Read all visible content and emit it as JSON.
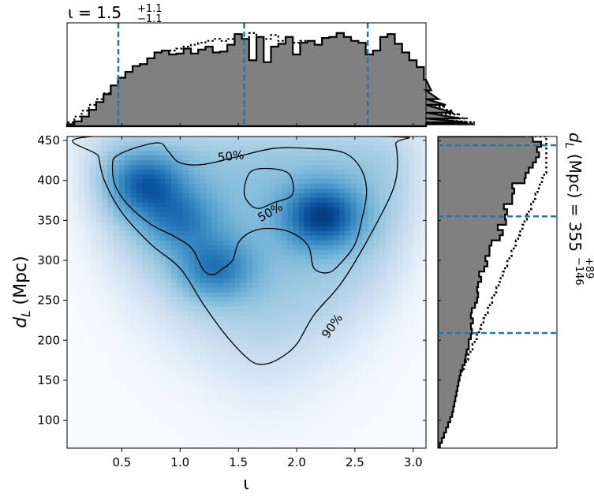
{
  "chart_data": [
    {
      "id": "joint",
      "type": "heatmap",
      "colormap": "Blues",
      "xlim": [
        0.03,
        3.11
      ],
      "ylim": [
        65,
        455
      ],
      "xticks": [
        "0.5",
        "1.0",
        "1.5",
        "2.0",
        "2.5",
        "3.0"
      ],
      "yticks": [
        "100",
        "150",
        "200",
        "250",
        "300",
        "350",
        "400",
        "450"
      ],
      "xlabel": "ι",
      "ylabel_main": "d",
      "ylabel_sub": "L",
      "ylabel_unit": "(Mpc)",
      "contour_labels": [
        "50%",
        "50%",
        "90%"
      ],
      "contours": [
        {
          "level": "90%",
          "points": [
            [
              0.25,
              455
            ],
            [
              0.3,
              430
            ],
            [
              0.35,
              400
            ],
            [
              0.5,
              360
            ],
            [
              0.75,
              320
            ],
            [
              1.0,
              290
            ],
            [
              1.2,
              245
            ],
            [
              1.4,
              205
            ],
            [
              1.6,
              175
            ],
            [
              1.72,
              170
            ],
            [
              1.85,
              177
            ],
            [
              2.0,
              195
            ],
            [
              2.15,
              232
            ],
            [
              2.4,
              275
            ],
            [
              2.7,
              350
            ],
            [
              2.85,
              400
            ],
            [
              2.85,
              445
            ],
            [
              2.75,
              455
            ]
          ]
        },
        {
          "level": "50%",
          "points": [
            [
              0.45,
              430
            ],
            [
              0.6,
              440
            ],
            [
              0.82,
              447
            ],
            [
              0.9,
              436
            ],
            [
              1.0,
              422
            ],
            [
              1.2,
              420
            ],
            [
              1.5,
              430
            ],
            [
              1.8,
              440
            ],
            [
              2.1,
              440
            ],
            [
              2.4,
              435
            ],
            [
              2.55,
              415
            ],
            [
              2.6,
              385
            ],
            [
              2.55,
              345
            ],
            [
              2.5,
              320
            ],
            [
              2.4,
              300
            ],
            [
              2.28,
              285
            ],
            [
              2.15,
              290
            ],
            [
              2.1,
              318
            ],
            [
              1.95,
              335
            ],
            [
              1.75,
              340
            ],
            [
              1.6,
              335
            ],
            [
              1.5,
              322
            ],
            [
              1.45,
              300
            ],
            [
              1.35,
              288
            ],
            [
              1.28,
              282
            ],
            [
              1.2,
              288
            ],
            [
              1.1,
              315
            ],
            [
              0.95,
              330
            ],
            [
              0.75,
              345
            ],
            [
              0.55,
              370
            ],
            [
              0.44,
              395
            ],
            [
              0.42,
              420
            ]
          ]
        },
        {
          "level": "50%",
          "points": [
            [
              1.55,
              385
            ],
            [
              1.6,
              410
            ],
            [
              1.75,
              415
            ],
            [
              1.92,
              410
            ],
            [
              1.97,
              395
            ],
            [
              1.95,
              380
            ],
            [
              1.8,
              372
            ],
            [
              1.68,
              365
            ],
            [
              1.6,
              370
            ]
          ]
        }
      ],
      "density_peaks": [
        {
          "x": 2.22,
          "y": 355,
          "w": 1.0
        },
        {
          "x": 0.7,
          "y": 395,
          "w": 0.8
        },
        {
          "x": 1.3,
          "y": 290,
          "w": 0.65
        },
        {
          "x": 1.0,
          "y": 350,
          "w": 0.55
        }
      ]
    },
    {
      "id": "marginal-iota",
      "type": "histogram",
      "title_symbol": "ι",
      "title_value": "1.5",
      "title_upper": "+1.1",
      "title_lower": "−1.1",
      "xlim": [
        0.03,
        3.11
      ],
      "ylim": [
        0,
        1.0
      ],
      "bin_width": 0.0625,
      "bin_start": 0.03,
      "values": [
        0.02,
        0.05,
        0.1,
        0.17,
        0.25,
        0.33,
        0.42,
        0.5,
        0.56,
        0.62,
        0.64,
        0.7,
        0.76,
        0.78,
        0.74,
        0.75,
        0.8,
        0.75,
        0.79,
        0.82,
        0.76,
        0.77,
        0.84,
        0.95,
        0.9,
        0.68,
        0.92,
        0.66,
        0.82,
        0.85,
        0.92,
        0.74,
        0.86,
        0.88,
        0.84,
        0.91,
        0.92,
        0.96,
        0.92,
        0.88,
        0.86,
        0.74,
        0.78,
        0.92,
        0.95,
        0.85,
        0.76,
        0.68,
        0.61,
        0.48,
        0.37,
        0.28,
        0.22,
        0.14,
        0.08,
        0.04,
        0.02
      ],
      "prior_values": [
        0.04,
        0.1,
        0.16,
        0.22,
        0.28,
        0.34,
        0.42,
        0.48,
        0.54,
        0.6,
        0.64,
        0.68,
        0.72,
        0.75,
        0.78,
        0.8,
        0.82,
        0.84,
        0.86,
        0.88,
        0.9,
        0.88,
        0.9,
        0.86,
        0.9,
        0.96,
        0.86,
        0.9,
        0.94,
        0.88,
        0.9,
        0.86,
        0.88,
        0.84,
        0.82,
        0.8,
        0.78,
        0.74,
        0.72,
        0.7,
        0.68,
        0.64,
        0.62,
        0.58,
        0.56,
        0.52,
        0.48,
        0.44,
        0.38,
        0.32,
        0.28,
        0.24,
        0.2,
        0.16,
        0.12,
        0.08,
        0.04
      ],
      "vlines": [
        0.47,
        1.55,
        2.61
      ]
    },
    {
      "id": "marginal-dl",
      "type": "histogram",
      "orientation": "horizontal",
      "title_symbol": "d",
      "title_sub": "L",
      "title_unit": "(Mpc)",
      "title_value": "355",
      "title_upper": "+89",
      "title_lower": "−146",
      "ylim": [
        65,
        455
      ],
      "bin_width": 6.5,
      "bin_start": 65,
      "values": [
        0.02,
        0.04,
        0.06,
        0.08,
        0.1,
        0.12,
        0.14,
        0.15,
        0.16,
        0.17,
        0.18,
        0.19,
        0.2,
        0.21,
        0.22,
        0.24,
        0.26,
        0.27,
        0.28,
        0.3,
        0.3,
        0.32,
        0.33,
        0.32,
        0.34,
        0.32,
        0.33,
        0.36,
        0.38,
        0.39,
        0.38,
        0.39,
        0.42,
        0.4,
        0.45,
        0.48,
        0.46,
        0.5,
        0.5,
        0.52,
        0.6,
        0.63,
        0.58,
        0.66,
        0.65,
        0.67,
        0.64,
        0.72,
        0.72,
        0.74,
        0.72,
        0.84,
        0.85,
        0.88,
        0.92,
        0.95,
        0.98,
        0.96,
        1.0,
        0.92,
        0.88,
        0.84
      ],
      "prior_values": [
        0.0,
        0.0,
        0.01,
        0.02,
        0.03,
        0.05,
        0.07,
        0.08,
        0.1,
        0.12,
        0.14,
        0.16,
        0.18,
        0.2,
        0.22,
        0.24,
        0.26,
        0.28,
        0.3,
        0.32,
        0.34,
        0.36,
        0.38,
        0.4,
        0.42,
        0.44,
        0.46,
        0.48,
        0.5,
        0.52,
        0.54,
        0.56,
        0.58,
        0.6,
        0.62,
        0.64,
        0.66,
        0.68,
        0.7,
        0.72,
        0.74,
        0.76,
        0.78,
        0.8,
        0.82,
        0.84,
        0.86,
        0.88,
        0.9,
        0.92,
        0.94,
        0.96,
        0.98,
        1.0,
        1.0,
        1.0,
        1.0,
        1.0,
        1.0,
        1.0,
        1.0,
        1.0
      ],
      "hlines": [
        209,
        355,
        444
      ]
    }
  ]
}
